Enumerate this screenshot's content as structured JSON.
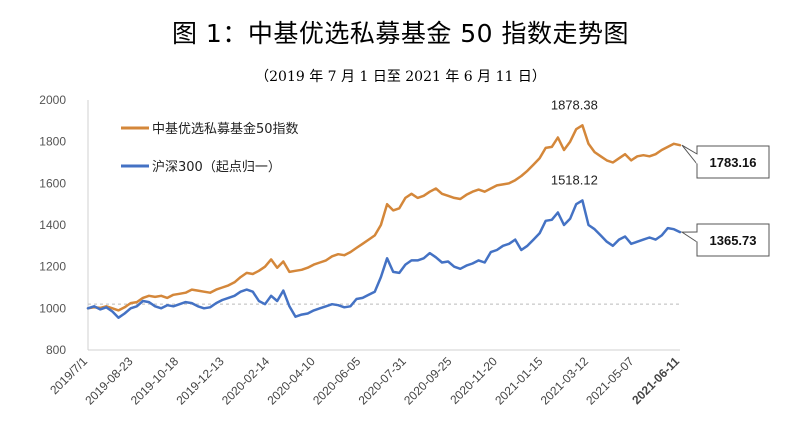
{
  "page": {
    "title": "图 1：中基优选私募基金 50 指数走势图",
    "subtitle": "（2019 年 7 月 1 日至 2021 年 6 月 11 日）"
  },
  "colors": {
    "fund_index": "#D4873A",
    "csi300": "#4472C4",
    "reference_line": "#BBBBBB"
  },
  "chart_data": {
    "type": "line",
    "title": "图 1：中基优选私募基金 50 指数走势图",
    "subtitle": "（2019 年 7 月 1 日至 2021 年 6 月 11 日）",
    "xlabel": "",
    "ylabel": "",
    "ylim": [
      800,
      2000
    ],
    "yticks": [
      "800",
      "1000",
      "1200",
      "1400",
      "1600",
      "1800",
      "2000"
    ],
    "xtick_labels": [
      "2019/7/1",
      "2019-08-23",
      "2019-10-18",
      "2019-12-13",
      "2020-02-14",
      "2020-04-10",
      "2020-06-05",
      "2020-07-31",
      "2020-09-25",
      "2020-11-20",
      "2021-01-15",
      "2021-03-12",
      "2021-05-07",
      "2021-06-11"
    ],
    "grid": false,
    "reference_line": 1020,
    "legend_position": "top-left",
    "series": [
      {
        "name": "中基优选私募基金50指数",
        "color": "#D4873A",
        "values": [
          1000,
          1005,
          1002,
          1010,
          1000,
          990,
          1005,
          1025,
          1030,
          1050,
          1060,
          1055,
          1060,
          1050,
          1065,
          1070,
          1075,
          1090,
          1085,
          1080,
          1075,
          1090,
          1100,
          1110,
          1125,
          1150,
          1170,
          1165,
          1180,
          1200,
          1235,
          1195,
          1225,
          1175,
          1180,
          1185,
          1195,
          1210,
          1220,
          1230,
          1250,
          1260,
          1255,
          1270,
          1290,
          1310,
          1330,
          1350,
          1400,
          1500,
          1470,
          1480,
          1530,
          1550,
          1530,
          1540,
          1560,
          1575,
          1550,
          1540,
          1530,
          1525,
          1545,
          1560,
          1570,
          1560,
          1575,
          1590,
          1595,
          1600,
          1615,
          1635,
          1660,
          1690,
          1720,
          1770,
          1775,
          1820,
          1760,
          1800,
          1860,
          1878.38,
          1790,
          1750,
          1730,
          1710,
          1700,
          1720,
          1740,
          1710,
          1730,
          1735,
          1730,
          1740,
          1760,
          1775,
          1790,
          1783.16
        ]
      },
      {
        "name": "沪深300（起点归一）",
        "color": "#4472C4",
        "values": [
          1000,
          1010,
          995,
          1005,
          985,
          955,
          975,
          1000,
          1010,
          1035,
          1030,
          1010,
          1000,
          1015,
          1010,
          1020,
          1030,
          1025,
          1010,
          1000,
          1005,
          1025,
          1040,
          1050,
          1060,
          1080,
          1090,
          1080,
          1035,
          1020,
          1060,
          1035,
          1085,
          1010,
          960,
          970,
          975,
          990,
          1000,
          1010,
          1020,
          1015,
          1005,
          1010,
          1045,
          1050,
          1065,
          1080,
          1150,
          1240,
          1175,
          1170,
          1210,
          1230,
          1230,
          1240,
          1265,
          1245,
          1220,
          1225,
          1200,
          1190,
          1205,
          1215,
          1230,
          1220,
          1270,
          1280,
          1300,
          1310,
          1330,
          1280,
          1300,
          1330,
          1360,
          1420,
          1425,
          1460,
          1400,
          1430,
          1500,
          1518.12,
          1400,
          1380,
          1350,
          1320,
          1300,
          1330,
          1345,
          1310,
          1320,
          1330,
          1340,
          1330,
          1350,
          1385,
          1380,
          1365.73
        ]
      }
    ],
    "annotations": [
      {
        "label": "1878.38",
        "series": 0,
        "index": 81
      },
      {
        "label": "1518.12",
        "series": 1,
        "index": 81
      }
    ],
    "end_callouts": [
      {
        "label": "1783.16",
        "series": 0
      },
      {
        "label": "1365.73",
        "series": 1
      }
    ]
  }
}
